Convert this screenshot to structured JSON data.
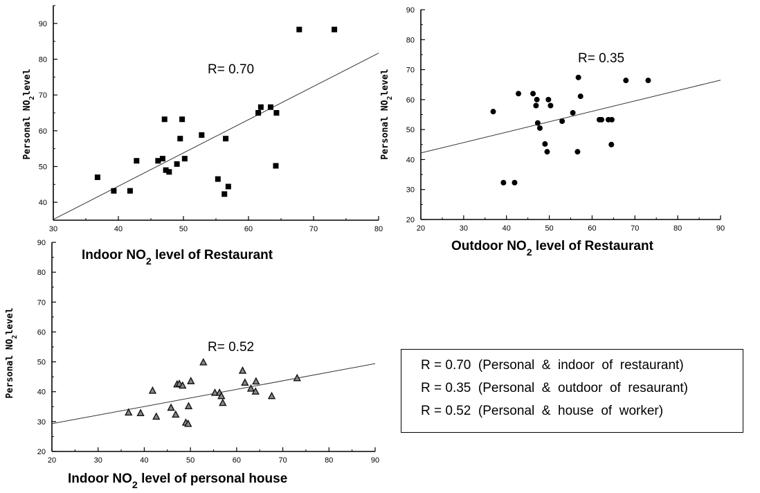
{
  "chart_data": [
    {
      "type": "scatter",
      "marker": "square",
      "xlabel": "Indoor NO2 level of Restaurant",
      "xlabel_parts": [
        "Indoor NO",
        "2",
        " level of Restaurant"
      ],
      "ylabel": "Personal NO2level",
      "ylabel_parts": [
        "Personal NO",
        "2",
        "level"
      ],
      "xlim": [
        30,
        80
      ],
      "ylim": [
        35,
        95
      ],
      "xticks": [
        30,
        40,
        50,
        60,
        70,
        80
      ],
      "yticks": [
        40,
        50,
        60,
        70,
        80,
        90
      ],
      "annotation": "R= 0.70",
      "trend": [
        [
          30,
          35.2
        ],
        [
          80,
          81.7
        ]
      ],
      "points": [
        [
          36.8,
          47.0
        ],
        [
          39.3,
          43.2
        ],
        [
          41.8,
          43.2
        ],
        [
          42.8,
          51.6
        ],
        [
          46.1,
          51.6
        ],
        [
          46.8,
          52.2
        ],
        [
          47.1,
          63.2
        ],
        [
          47.3,
          49.0
        ],
        [
          47.8,
          48.5
        ],
        [
          49.0,
          50.7
        ],
        [
          49.5,
          57.8
        ],
        [
          49.8,
          63.2
        ],
        [
          50.2,
          52.2
        ],
        [
          52.8,
          58.8
        ],
        [
          55.3,
          46.5
        ],
        [
          56.3,
          42.3
        ],
        [
          56.5,
          57.8
        ],
        [
          56.9,
          44.4
        ],
        [
          61.5,
          65.0
        ],
        [
          61.9,
          66.6
        ],
        [
          63.4,
          66.6
        ],
        [
          64.2,
          50.2
        ],
        [
          64.3,
          65.0
        ],
        [
          67.8,
          88.3
        ],
        [
          73.2,
          88.3
        ]
      ]
    },
    {
      "type": "scatter",
      "marker": "circle",
      "xlabel": "Outdoor NO2 level of Restaurant",
      "xlabel_parts": [
        "Outdoor NO",
        "2",
        " level of Restaurant"
      ],
      "ylabel": "Personal NO2level",
      "ylabel_parts": [
        "Personal NO",
        "2",
        "level"
      ],
      "xlim": [
        20,
        90
      ],
      "ylim": [
        20,
        90
      ],
      "xticks": [
        20,
        30,
        40,
        50,
        60,
        70,
        80,
        90
      ],
      "yticks": [
        20,
        30,
        40,
        50,
        60,
        70,
        80,
        90
      ],
      "annotation": "R= 0.35",
      "trend": [
        [
          20,
          42.2
        ],
        [
          90,
          66.5
        ]
      ],
      "points": [
        [
          36.9,
          56.0
        ],
        [
          39.3,
          32.3
        ],
        [
          41.9,
          32.3
        ],
        [
          42.8,
          62.0
        ],
        [
          46.2,
          62.0
        ],
        [
          46.9,
          58.0
        ],
        [
          47.1,
          60.0
        ],
        [
          47.3,
          52.2
        ],
        [
          47.8,
          50.5
        ],
        [
          49.0,
          45.2
        ],
        [
          49.5,
          42.6
        ],
        [
          49.8,
          60.0
        ],
        [
          50.3,
          58.0
        ],
        [
          53.0,
          52.8
        ],
        [
          55.5,
          55.6
        ],
        [
          56.6,
          42.6
        ],
        [
          56.8,
          67.4
        ],
        [
          57.3,
          61.1
        ],
        [
          61.7,
          53.3
        ],
        [
          62.2,
          53.3
        ],
        [
          63.8,
          53.3
        ],
        [
          64.5,
          45.0
        ],
        [
          64.6,
          53.3
        ],
        [
          67.9,
          66.4
        ],
        [
          73.1,
          66.4
        ]
      ]
    },
    {
      "type": "scatter",
      "marker": "triangle",
      "xlabel": "Indoor NO2 level of personal house",
      "xlabel_parts": [
        "Indoor NO",
        "2",
        " level of personal house"
      ],
      "ylabel": "Personal NO2level",
      "ylabel_parts": [
        "Personal NO",
        "2",
        "level"
      ],
      "xlim": [
        20,
        90
      ],
      "ylim": [
        20,
        90
      ],
      "xticks": [
        20,
        30,
        40,
        50,
        60,
        70,
        80,
        90
      ],
      "yticks": [
        20,
        30,
        40,
        50,
        60,
        70,
        80,
        90
      ],
      "annotation": "R= 0.52",
      "trend": [
        [
          20,
          29.3
        ],
        [
          90,
          49.4
        ]
      ],
      "points": [
        [
          36.6,
          33.0
        ],
        [
          39.2,
          32.8
        ],
        [
          41.8,
          40.3
        ],
        [
          42.6,
          31.6
        ],
        [
          45.8,
          34.6
        ],
        [
          46.8,
          32.3
        ],
        [
          47.1,
          42.4
        ],
        [
          47.6,
          42.6
        ],
        [
          48.3,
          42.0
        ],
        [
          49.0,
          29.6
        ],
        [
          49.5,
          29.2
        ],
        [
          49.6,
          35.1
        ],
        [
          50.1,
          43.5
        ],
        [
          52.8,
          49.8
        ],
        [
          55.3,
          39.6
        ],
        [
          56.3,
          39.6
        ],
        [
          56.7,
          38.5
        ],
        [
          57.0,
          36.2
        ],
        [
          61.3,
          47.0
        ],
        [
          61.8,
          43.0
        ],
        [
          63.1,
          41.0
        ],
        [
          64.1,
          40.0
        ],
        [
          64.2,
          43.4
        ],
        [
          67.6,
          38.5
        ],
        [
          73.1,
          44.5
        ]
      ]
    }
  ],
  "legend": {
    "lines": [
      "R = 0.70  (Personal  &  indoor  of  restaurant)",
      "R = 0.35  (Personal  &  outdoor  of  resaurant)",
      "R = 0.52  (Personal  &  house  of  worker)"
    ]
  }
}
